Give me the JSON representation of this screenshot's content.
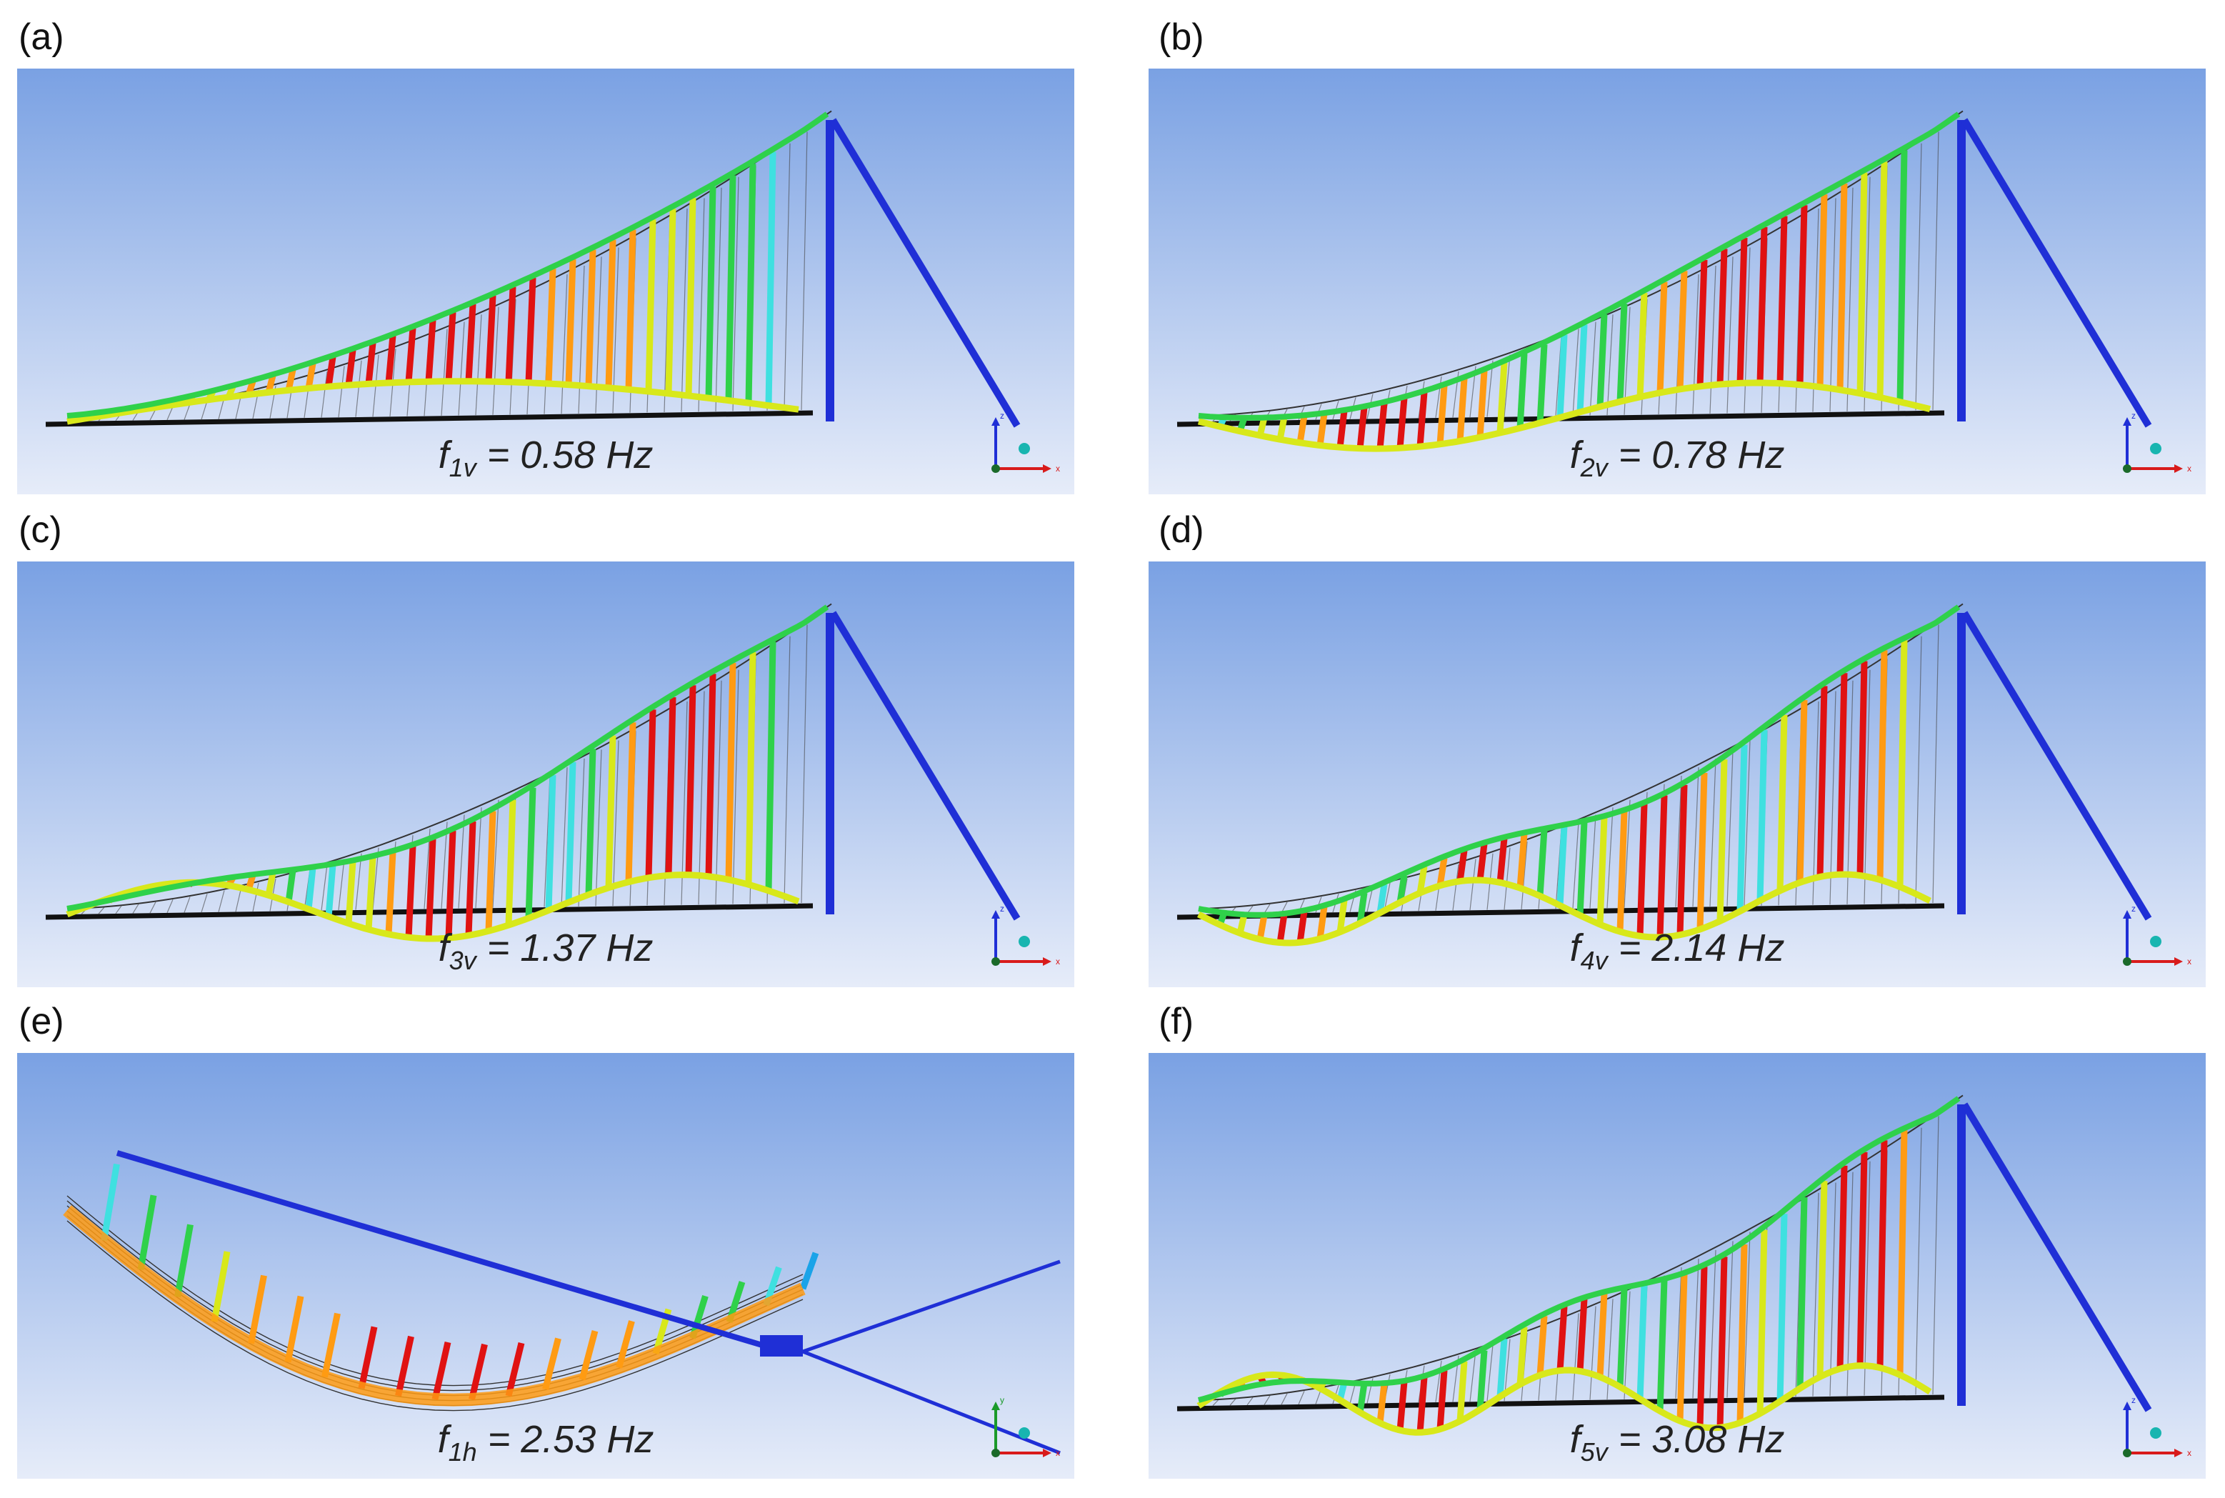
{
  "panels": [
    {
      "label": "(a)",
      "sym": "f",
      "sub": "1v",
      "eq": " = 0.58 Hz",
      "mode": "vertical",
      "half_waves": 1
    },
    {
      "label": "(b)",
      "sym": "f",
      "sub": "2v",
      "eq": " = 0.78 Hz",
      "mode": "vertical",
      "half_waves": 2
    },
    {
      "label": "(c)",
      "sym": "f",
      "sub": "3v",
      "eq": " = 1.37 Hz",
      "mode": "vertical",
      "half_waves": 3
    },
    {
      "label": "(d)",
      "sym": "f",
      "sub": "4v",
      "eq": " = 2.14 Hz",
      "mode": "vertical",
      "half_waves": 4
    },
    {
      "label": "(e)",
      "sym": "f",
      "sub": "1h",
      "eq": " = 2.53 Hz",
      "mode": "horizontal",
      "half_waves": 1
    },
    {
      "label": "(f)",
      "sym": "f",
      "sub": "5v",
      "eq": " = 3.08 Hz",
      "mode": "vertical",
      "half_waves": 5
    }
  ],
  "axes": {
    "z": "z",
    "y": "y",
    "x": "x"
  },
  "colors": {
    "sky_top": "#7aa1e3",
    "sky_bottom": "#e6ecf9",
    "pylon": "#1f2fd6",
    "deck": "#111111",
    "contour": [
      "#0b2fd0",
      "#1aa3e8",
      "#3fe0e0",
      "#2fd14a",
      "#d8e81a",
      "#ff9b13",
      "#e01212"
    ]
  }
}
